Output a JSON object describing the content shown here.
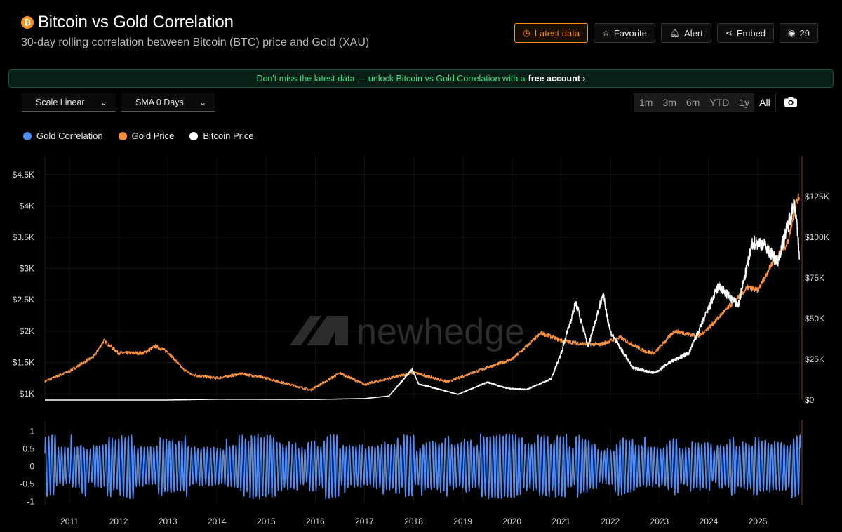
{
  "header": {
    "badge": "₿",
    "title": "Bitcoin vs Gold Correlation",
    "subtitle": "30-day rolling correlation between Bitcoin (BTC) price and Gold (XAU)"
  },
  "actions": {
    "latest": "Latest data",
    "favorite": "Favorite",
    "alert": "Alert",
    "embed": "Embed",
    "views": "29"
  },
  "banner": {
    "text": "Don't miss the latest data — unlock Bitcoin vs Gold Correlation with a",
    "link": "free account ›"
  },
  "controls": {
    "scale": "Scale Linear",
    "sma": "SMA 0 Days"
  },
  "ranges": [
    "1m",
    "3m",
    "6m",
    "YTD",
    "1y",
    "All"
  ],
  "watermark": "newhedge",
  "colors": {
    "correlation": "#4f8df5",
    "gold": "#f7913f",
    "bitcoin": "#ffffff",
    "accent": "#f7931a"
  },
  "chart_data": {
    "type": "line",
    "legend": [
      "Gold Correlation",
      "Gold Price",
      "Bitcoin Price"
    ],
    "legend_placement": "top-left",
    "x_ticks": [
      "2011",
      "2012",
      "2013",
      "2014",
      "2015",
      "2016",
      "2017",
      "2018",
      "2019",
      "2020",
      "2021",
      "2022",
      "2023",
      "2024",
      "2025"
    ],
    "left_axis": {
      "ticks": [
        "$1K",
        "$1.5K",
        "$2K",
        "$2.5K",
        "$3K",
        "$3.5K",
        "$4K",
        "$4.5K"
      ],
      "values": [
        1000,
        1500,
        2000,
        2500,
        3000,
        3500,
        4000,
        4500
      ],
      "ylim": [
        900,
        4800
      ]
    },
    "right_axis": {
      "ticks": [
        "$0",
        "$25K",
        "$50K",
        "$75K",
        "$100K",
        "$125K"
      ],
      "values": [
        0,
        25000,
        50000,
        75000,
        100000,
        125000
      ],
      "ylim": [
        0,
        150000
      ]
    },
    "corr_axis": {
      "ticks": [
        "1",
        "0.5",
        "0",
        "-0.5",
        "-1"
      ],
      "values": [
        1,
        0.5,
        0,
        -0.5,
        -1
      ],
      "ylim": [
        -1.05,
        1.05
      ]
    },
    "series": [
      {
        "name": "Gold Price",
        "x": [
          2010.5,
          2011.0,
          2011.5,
          2011.7,
          2012.0,
          2012.5,
          2012.75,
          2013.0,
          2013.3,
          2013.5,
          2014.0,
          2014.5,
          2015.0,
          2015.9,
          2016.5,
          2017.0,
          2018.0,
          2018.7,
          2019.0,
          2019.5,
          2020.0,
          2020.6,
          2021.0,
          2021.4,
          2021.8,
          2022.2,
          2022.7,
          2022.9,
          2023.3,
          2023.8,
          2024.0,
          2024.3,
          2024.8,
          2025.0,
          2025.3,
          2025.6,
          2025.8,
          2025.85
        ],
        "y": [
          1200,
          1360,
          1600,
          1850,
          1650,
          1650,
          1760,
          1670,
          1400,
          1300,
          1250,
          1320,
          1250,
          1060,
          1330,
          1150,
          1340,
          1190,
          1280,
          1420,
          1550,
          1970,
          1850,
          1800,
          1790,
          1900,
          1680,
          1650,
          2000,
          1920,
          2050,
          2300,
          2700,
          2650,
          3100,
          3400,
          4100,
          4150
        ]
      },
      {
        "name": "Bitcoin Price",
        "x": [
          2010.5,
          2013.0,
          2014.0,
          2016.0,
          2017.0,
          2017.5,
          2017.97,
          2018.1,
          2018.9,
          2019.5,
          2019.9,
          2020.3,
          2020.8,
          2021.0,
          2021.3,
          2021.55,
          2021.85,
          2022.0,
          2022.45,
          2022.9,
          2023.2,
          2023.6,
          2024.2,
          2024.6,
          2024.9,
          2025.1,
          2025.4,
          2025.75,
          2025.85
        ],
        "y": [
          0,
          0,
          500,
          400,
          900,
          2500,
          19000,
          10000,
          3500,
          11000,
          7200,
          6500,
          13000,
          29000,
          60000,
          33000,
          65000,
          42000,
          20000,
          16500,
          23000,
          29000,
          70000,
          58000,
          97000,
          96000,
          85000,
          122000,
          88000
        ]
      },
      {
        "name": "Gold Correlation",
        "oscillating": true,
        "range": [
          -0.9,
          0.9
        ]
      }
    ]
  }
}
